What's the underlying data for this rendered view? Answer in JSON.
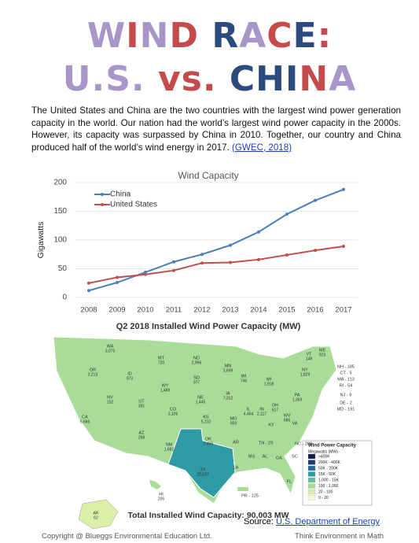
{
  "header": {
    "lines": [
      {
        "text": "WIND RACE:",
        "colors": [
          "#a996c9",
          "#c44a4c",
          "#a996c9",
          "#c44a4c",
          "#ffffff",
          "#2b4a7d",
          "#a996c9",
          "#c44a4c",
          "#2b4a7d",
          "#c44a4c"
        ]
      },
      {
        "text": "U.S. vs. CHINA",
        "colors": [
          "#a996c9",
          "#a996c9",
          "#a996c9",
          "#a996c9",
          "#ffffff",
          "#c44a4c",
          "#c44a4c",
          "#c44a4c",
          "#ffffff",
          "#2b4a7d",
          "#2b4a7d",
          "#2b4a7d",
          "#c44a4c",
          "#a996c9"
        ]
      }
    ]
  },
  "paragraph": {
    "text": "The United States and China are the two countries with the largest wind power generation capacity in the world.  Our nation had the world’s largest wind power capacity in the 2000s. However, its capacity was surpassed by China in 2010. Together, our country and China produced half of the world’s wind energy in 2017.",
    "link": "(GWEC, 2018)"
  },
  "chart_data": {
    "type": "line",
    "title": "Wind Capacity",
    "y_label": "Gigawatts",
    "categories": [
      "2008",
      "2009",
      "2010",
      "2011",
      "2012",
      "2013",
      "2014",
      "2015",
      "2016",
      "2017"
    ],
    "series": [
      {
        "name": "China",
        "color": "#4a7ebb",
        "values": [
          12,
          26,
          44,
          62,
          75,
          91,
          114,
          145,
          169,
          188
        ]
      },
      {
        "name": "United States",
        "color": "#c0504d",
        "values": [
          25,
          35,
          40,
          47,
          60,
          61,
          66,
          74,
          82,
          89
        ]
      }
    ],
    "ylim": [
      0,
      200
    ],
    "yticks": [
      0,
      50,
      100,
      150,
      200
    ],
    "grid": true,
    "legend": "top-left"
  },
  "map": {
    "title": "Q2 2018 Installed Wind Power Capacity (MW)",
    "states": [
      [
        "WA",
        "3,075"
      ],
      [
        "OR",
        "3,213"
      ],
      [
        "CA",
        "5,686"
      ],
      [
        "ID",
        "973"
      ],
      [
        "NV",
        "152"
      ],
      [
        "UT",
        "391"
      ],
      [
        "AZ",
        "268"
      ],
      [
        "MT",
        "720"
      ],
      [
        "WY",
        "1,489"
      ],
      [
        "CO",
        "3,106"
      ],
      [
        "NM",
        "1,682"
      ],
      [
        "ND",
        "2,996"
      ],
      [
        "SD",
        "977"
      ],
      [
        "NE",
        "1,445"
      ],
      [
        "KS",
        "5,110"
      ],
      [
        "OK",
        "7,495"
      ],
      [
        "TX",
        "22,637"
      ],
      [
        "MN",
        "3,699"
      ],
      [
        "IA",
        "7,312"
      ],
      [
        "MO",
        "959"
      ],
      [
        "WI",
        "746"
      ],
      [
        "IL",
        "4,464"
      ],
      [
        "MI",
        "1,918"
      ],
      [
        "IN",
        "2,117"
      ],
      [
        "OH",
        "617"
      ],
      [
        "KY",
        ""
      ],
      [
        "TN - 29",
        ""
      ],
      [
        "PA",
        "1,369"
      ],
      [
        "NY",
        "1,829"
      ],
      [
        "VT",
        "149"
      ],
      [
        "ME",
        "923"
      ],
      [
        "NH - 185",
        ""
      ],
      [
        "CT - 5",
        ""
      ],
      [
        "MA - 113",
        ""
      ],
      [
        "RI - 54",
        ""
      ],
      [
        "NJ - 9",
        ""
      ],
      [
        "DE - 2",
        ""
      ],
      [
        "MD - 191",
        ""
      ],
      [
        "WV",
        "686"
      ],
      [
        "VA",
        ""
      ],
      [
        "NC - 208",
        ""
      ],
      [
        "AR",
        ""
      ],
      [
        "LA",
        ""
      ],
      [
        "MS",
        ""
      ],
      [
        "AL",
        ""
      ],
      [
        "GA",
        ""
      ],
      [
        "SC",
        ""
      ],
      [
        "FL",
        ""
      ],
      [
        "AK",
        "62"
      ],
      [
        "HI",
        "206"
      ],
      [
        "PR - 125",
        ""
      ]
    ],
    "legend_title": "Wind Power Capacity",
    "legend_subtitle": "Megawatts (MW)",
    "legend_items": [
      {
        "label": ">400K",
        "color": "#0d1a4f"
      },
      {
        "label": "200K - 400K",
        "color": "#163f7a"
      },
      {
        "label": "50K - 200K",
        "color": "#1f6b99"
      },
      {
        "label": "15K - 50K",
        "color": "#2e9aa6"
      },
      {
        "label": "1,000 - 15K",
        "color": "#5fbf9a"
      },
      {
        "label": "100 - 1,000",
        "color": "#a8dc98"
      },
      {
        "label": "20 - 100",
        "color": "#dcefa8"
      },
      {
        "label": "0 - 20",
        "color": "#f6f9d8"
      }
    ],
    "total": "Total Installed Wind Capacity: 90,003 MW"
  },
  "source": {
    "label": "Source:",
    "link": "U.S. Department of Energy"
  },
  "footer": {
    "left": "Copyright @ Blueggs Environmental Education Ltd.",
    "right": "Think Environment in Math"
  }
}
